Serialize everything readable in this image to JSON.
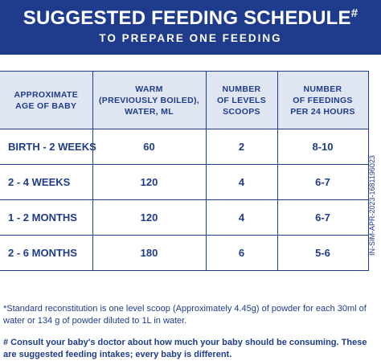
{
  "header": {
    "title": "SUGGESTED FEEDING SCHEDULE",
    "title_mark": "#",
    "subtitle": "TO PREPARE ONE FEEDING"
  },
  "table": {
    "columns": [
      [
        "APPROXIMATE",
        "AGE OF BABY"
      ],
      [
        "WARM",
        "(PREVIOUSLY BOILED),",
        "WATER, ML"
      ],
      [
        "NUMBER",
        "OF LEVELS",
        "SCOOPS"
      ],
      [
        "NUMBER",
        "OF FEEDINGS",
        "PER 24 HOURS"
      ]
    ],
    "rows": [
      [
        "BIRTH - 2 WEEKS",
        "60",
        "2",
        "8-10"
      ],
      [
        "2 - 4 WEEKS",
        "120",
        "4",
        "6-7"
      ],
      [
        "1 - 2 MONTHS",
        "120",
        "4",
        "6-7"
      ],
      [
        "2 - 6 MONTHS",
        "180",
        "6",
        "5-6"
      ]
    ]
  },
  "side_code": "IN-SIM-APR-2023-1681196023",
  "footnotes": [
    "*Standard reconstitution is one level scoop (Approximately 4.45g) of powder for each 30ml of water or 134 g of powder diluted to 1L in water.",
    "# Consult your baby's doctor about how much your baby should be consuming. These are suggested feeding intakes; every baby is different."
  ]
}
